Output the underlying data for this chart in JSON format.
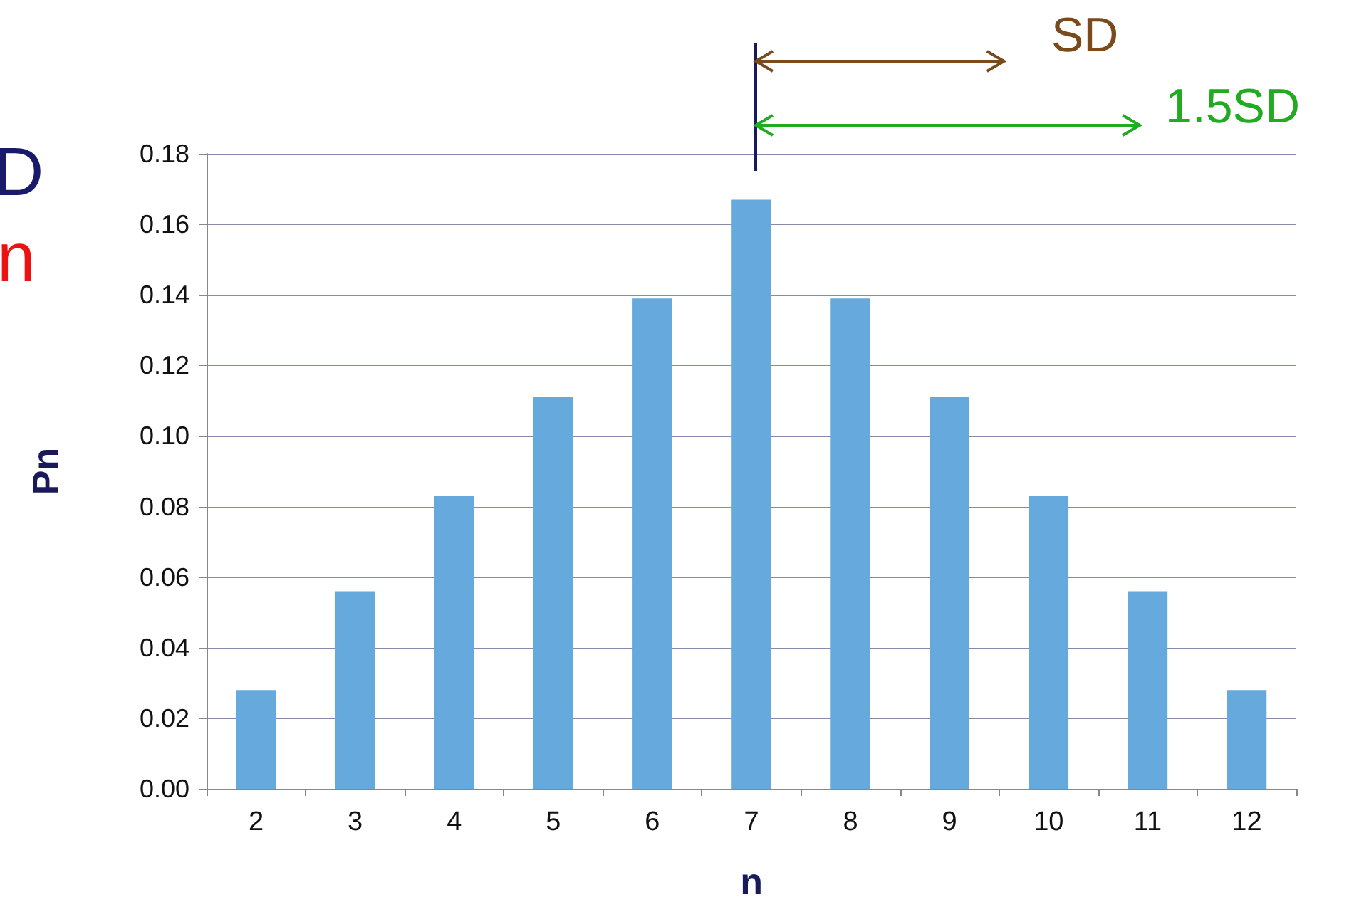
{
  "chart_data": {
    "type": "bar",
    "xlabel": "n",
    "ylabel": "Pn",
    "categories": [
      "2",
      "3",
      "4",
      "5",
      "6",
      "7",
      "8",
      "9",
      "10",
      "11",
      "12"
    ],
    "values": [
      0.028,
      0.056,
      0.083,
      0.111,
      0.139,
      0.167,
      0.139,
      0.111,
      0.083,
      0.056,
      0.028
    ],
    "color": "#66aadd",
    "ylim": [
      0,
      0.18
    ],
    "yticks": [
      {
        "value": 0,
        "label": "0.00"
      },
      {
        "value": 0.02,
        "label": "0.02"
      },
      {
        "value": 0.04,
        "label": "0.04"
      },
      {
        "value": 0.06,
        "label": "0.06"
      },
      {
        "value": 0.08,
        "label": "0.08"
      },
      {
        "value": 0.1,
        "label": "0.10"
      },
      {
        "value": 0.12,
        "label": "0.12"
      },
      {
        "value": 0.14,
        "label": "0.14"
      },
      {
        "value": 0.16,
        "label": "0.16"
      },
      {
        "value": 0.18,
        "label": "0.18"
      }
    ],
    "grid": "y",
    "annotations": [
      "SD",
      "1.5SD",
      "D",
      "n"
    ]
  }
}
